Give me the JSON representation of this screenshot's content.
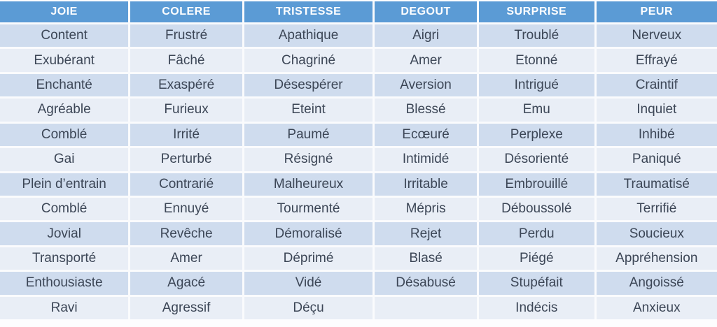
{
  "table": {
    "description": "French emotion vocabulary table with six category columns",
    "colors": {
      "header_bg": "#5b9bd5",
      "header_text": "#ffffff",
      "row_band_dark": "#cfdcee",
      "row_band_light": "#e9eef6",
      "cell_text": "#3c4656",
      "grid_line": "#fafbfd"
    },
    "columns": [
      {
        "header": "JOIE",
        "items": [
          "Content",
          "Exubérant",
          "Enchanté",
          "Agréable",
          "Comblé",
          "Gai",
          "Plein d’entrain",
          "Comblé",
          "Jovial",
          "Transporté",
          "Enthousiaste",
          "Ravi"
        ]
      },
      {
        "header": "COLERE",
        "items": [
          "Frustré",
          "Fâché",
          "Exaspéré",
          "Furieux",
          "Irrité",
          "Perturbé",
          "Contrarié",
          "Ennuyé",
          "Revêche",
          "Amer",
          "Agacé",
          "Agressif"
        ]
      },
      {
        "header": "TRISTESSE",
        "items": [
          "Apathique",
          "Chagriné",
          "Désespérer",
          "Eteint",
          "Paumé",
          "Résigné",
          "Malheureux",
          "Tourmenté",
          "Démoralisé",
          "Déprimé",
          "Vidé",
          "Déçu"
        ]
      },
      {
        "header": "DEGOUT",
        "items": [
          "Aigri",
          "Amer",
          "Aversion",
          "Blessé",
          "Ecœuré",
          "Intimidé",
          "Irritable",
          "Mépris",
          "Rejet",
          "Blasé",
          "Désabusé",
          ""
        ]
      },
      {
        "header": "SURPRISE",
        "items": [
          "Troublé",
          "Etonné",
          "Intrigué",
          "Emu",
          "Perplexe",
          "Désorienté",
          "Embrouillé",
          "Déboussolé",
          "Perdu",
          "Piégé",
          "Stupéfait",
          "Indécis"
        ]
      },
      {
        "header": "PEUR",
        "items": [
          "Nerveux",
          "Effrayé",
          "Craintif",
          "Inquiet",
          "Inhibé",
          "Paniqué",
          "Traumatisé",
          "Terrifié",
          "Soucieux",
          "Appréhension",
          "Angoissé",
          "Anxieux"
        ]
      }
    ]
  }
}
